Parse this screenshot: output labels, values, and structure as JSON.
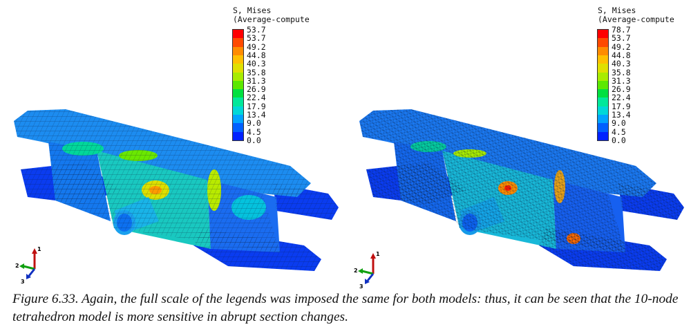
{
  "figure": {
    "panels": [
      {
        "id": "left",
        "legend": {
          "title_line1": "S, Mises",
          "title_line2": "(Average-compute",
          "ticks": [
            "53.7",
            "53.7",
            "49.2",
            "44.8",
            "40.3",
            "35.8",
            "31.3",
            "26.9",
            "22.4",
            "17.9",
            "13.4",
            "9.0",
            "4.5",
            "0.0"
          ]
        },
        "triad": {
          "axis_1": "1",
          "axis_2": "2",
          "axis_3": "3"
        }
      },
      {
        "id": "right",
        "legend": {
          "title_line1": "S, Mises",
          "title_line2": "(Average-compute",
          "ticks": [
            "78.7",
            "53.7",
            "49.2",
            "44.8",
            "40.3",
            "35.8",
            "31.3",
            "26.9",
            "22.4",
            "17.9",
            "13.4",
            "9.0",
            "4.5",
            "0.0"
          ]
        },
        "triad": {
          "axis_1": "1",
          "axis_2": "2",
          "axis_3": "3"
        }
      }
    ],
    "colormap": [
      "#ff0000",
      "#ff4a00",
      "#ff8c00",
      "#ffc000",
      "#e0e000",
      "#a8ec00",
      "#5ce800",
      "#00e040",
      "#00e89a",
      "#00d8d8",
      "#00a4ff",
      "#0060ff",
      "#0022ff"
    ],
    "caption": "Figure 6.33. Again, the full scale of the legends was imposed the same for both models: thus, it can be seen that the 10-node tetrahedron model is more sensitive in abrupt section changes."
  }
}
